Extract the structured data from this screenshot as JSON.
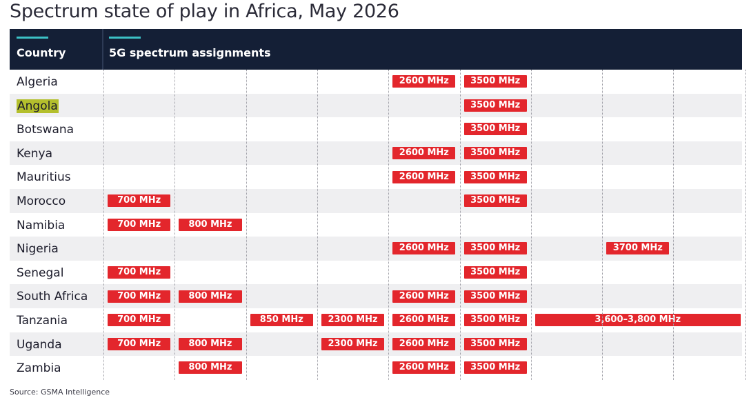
{
  "title": "Spectrum state of play in Africa, May 2026",
  "header": {
    "country_label": "Country",
    "assignments_label": "5G spectrum assignments",
    "accent_color": "#3cc1c6",
    "background_color": "#141f36"
  },
  "source": "Source: GSMA Intelligence",
  "colors": {
    "badge": "#e3262c",
    "highlight": "#b4bf2d",
    "row_shade": "#efeff1"
  },
  "chart_data": {
    "type": "table",
    "bands": [
      "700 MHz",
      "800 MHz",
      "850 MHz",
      "2300 MHz",
      "2600 MHz",
      "3500 MHz",
      "3700 MHz"
    ],
    "rows": [
      {
        "country": "Algeria",
        "assignments": [
          "2600 MHz",
          "3500 MHz"
        ]
      },
      {
        "country": "Angola",
        "highlighted": true,
        "assignments": [
          "3500 MHz"
        ]
      },
      {
        "country": "Botswana",
        "assignments": [
          "3500 MHz"
        ]
      },
      {
        "country": "Kenya",
        "assignments": [
          "2600 MHz",
          "3500 MHz"
        ]
      },
      {
        "country": "Mauritius",
        "assignments": [
          "2600 MHz",
          "3500 MHz"
        ]
      },
      {
        "country": "Morocco",
        "assignments": [
          "700 MHz",
          "3500 MHz"
        ]
      },
      {
        "country": "Namibia",
        "assignments": [
          "700 MHz",
          "800 MHz"
        ]
      },
      {
        "country": "Nigeria",
        "assignments": [
          "2600 MHz",
          "3500 MHz",
          "3700 MHz"
        ]
      },
      {
        "country": "Senegal",
        "assignments": [
          "700 MHz",
          "3500 MHz"
        ]
      },
      {
        "country": "South Africa",
        "assignments": [
          "700 MHz",
          "800 MHz",
          "2600 MHz",
          "3500 MHz"
        ]
      },
      {
        "country": "Tanzania",
        "assignments": [
          "700 MHz",
          "850 MHz",
          "2300 MHz",
          "2600 MHz",
          "3500 MHz",
          "3,600–3,800 MHz"
        ]
      },
      {
        "country": "Uganda",
        "assignments": [
          "700 MHz",
          "800 MHz",
          "2300 MHz",
          "2600 MHz",
          "3500 MHz"
        ]
      },
      {
        "country": "Zambia",
        "assignments": [
          "800 MHz",
          "2600 MHz",
          "3500 MHz"
        ]
      }
    ]
  }
}
